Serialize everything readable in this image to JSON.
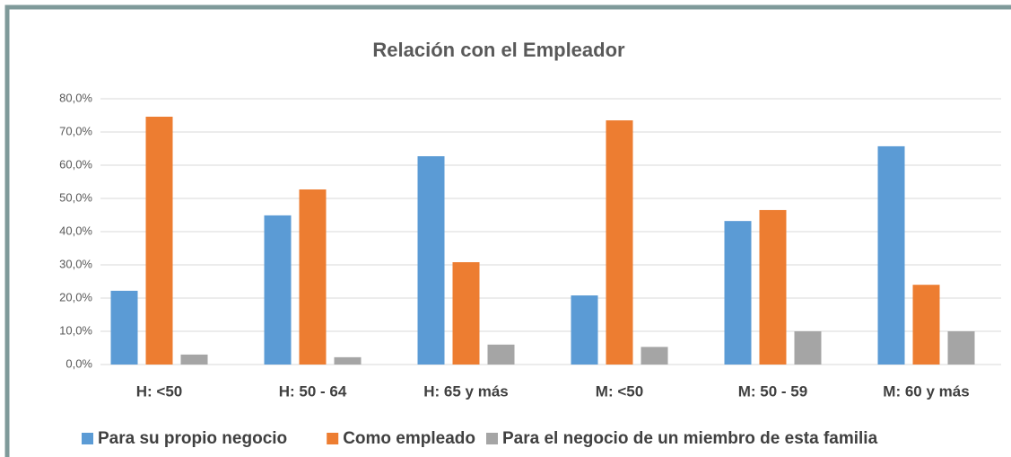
{
  "chart_data": {
    "type": "bar",
    "title": "Relación con el Empleador",
    "categories": [
      "H: <50",
      "H: 50 - 64",
      "H: 65 y más",
      "M: <50",
      "M: 50 - 59",
      "M: 60 y más"
    ],
    "series": [
      {
        "name": "Para su propio negocio",
        "color": "#5b9bd5",
        "values": [
          22.2,
          44.9,
          62.7,
          20.8,
          43.2,
          65.7
        ]
      },
      {
        "name": "Como empleado",
        "color": "#ed7d31",
        "values": [
          74.6,
          52.7,
          30.8,
          73.5,
          46.5,
          24.0
        ]
      },
      {
        "name": "Para el negocio de un miembro de esta familia",
        "color": "#a5a5a5",
        "values": [
          3.0,
          2.2,
          6.0,
          5.3,
          10.0,
          10.0
        ]
      }
    ],
    "ylim": [
      0,
      80
    ],
    "yticks": [
      {
        "value": 0,
        "label": "0,0%"
      },
      {
        "value": 10,
        "label": "10,0%"
      },
      {
        "value": 20,
        "label": "20,0%"
      },
      {
        "value": 30,
        "label": "30,0%"
      },
      {
        "value": 40,
        "label": "40,0%"
      },
      {
        "value": 50,
        "label": "50,0%"
      },
      {
        "value": 60,
        "label": "60,0%"
      },
      {
        "value": 70,
        "label": "70,0%"
      },
      {
        "value": 80,
        "label": "80,0%"
      }
    ],
    "grid": true,
    "legend": "bottom"
  }
}
